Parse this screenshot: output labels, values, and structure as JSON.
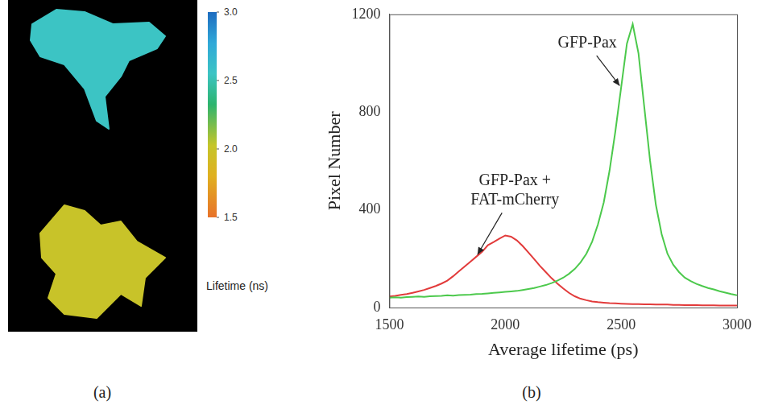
{
  "chart_data": [
    {
      "type": "image",
      "panel_label": "(a)",
      "values": [
        2.55,
        2.0
      ],
      "colorbar": {
        "title": "Lifetime (ns)",
        "range": [
          1.5,
          3.0
        ],
        "ticks": [
          1.5,
          {
            "value": 2.0,
            "label": "2.0"
          },
          2.5,
          {
            "value": 3.0,
            "label": "3.0"
          }
        ]
      }
    },
    {
      "type": "line",
      "panel_label": "(b)",
      "x_label": "Average lifetime (ps)",
      "y_label": "Pixel Number",
      "x": [
        1500,
        1525,
        1550,
        1575,
        1600,
        1625,
        1650,
        1675,
        1700,
        1725,
        1750,
        1775,
        1800,
        1825,
        1850,
        1875,
        1900,
        1925,
        1950,
        1975,
        2000,
        2025,
        2050,
        2075,
        2100,
        2125,
        2150,
        2175,
        2200,
        2225,
        2250,
        2275,
        2300,
        2325,
        2350,
        2375,
        2400,
        2425,
        2450,
        2475,
        2500,
        2525,
        2550,
        2575,
        2600,
        2625,
        2650,
        2675,
        2700,
        2725,
        2750,
        2775,
        2800,
        2825,
        2850,
        2875,
        2900,
        2925,
        2950,
        2975,
        3000
      ],
      "series": [
        {
          "name": "GFP-Pax",
          "color": "#4cc94c",
          "values": [
            40,
            42,
            40,
            43,
            44,
            45,
            44,
            46,
            47,
            48,
            50,
            49,
            51,
            52,
            53,
            55,
            56,
            58,
            60,
            62,
            64,
            66,
            68,
            72,
            76,
            80,
            86,
            92,
            100,
            110,
            122,
            138,
            158,
            185,
            220,
            270,
            340,
            430,
            560,
            720,
            900,
            1080,
            1160,
            1040,
            820,
            600,
            420,
            300,
            220,
            175,
            145,
            122,
            108,
            97,
            88,
            80,
            74,
            67,
            61,
            55,
            50
          ]
        },
        {
          "name": "GFP-Pax + FAT-mCherry",
          "color": "#e23b3b",
          "values": [
            45,
            48,
            52,
            55,
            60,
            66,
            72,
            80,
            88,
            98,
            110,
            128,
            148,
            168,
            188,
            208,
            228,
            255,
            268,
            282,
            295,
            290,
            275,
            252,
            225,
            198,
            170,
            145,
            120,
            98,
            78,
            60,
            46,
            36,
            30,
            25,
            22,
            20,
            18,
            17,
            16,
            15,
            14,
            14,
            13,
            13,
            12,
            12,
            12,
            11,
            11,
            10,
            10,
            10,
            9,
            9,
            9,
            8,
            8,
            8,
            8
          ]
        }
      ],
      "xlim": [
        1500,
        3000
      ],
      "xticks": [
        1500,
        2000,
        2500,
        3000
      ],
      "ylim": [
        0,
        1200
      ],
      "yticks": [
        0,
        400,
        800,
        1200
      ],
      "grid": false
    }
  ]
}
